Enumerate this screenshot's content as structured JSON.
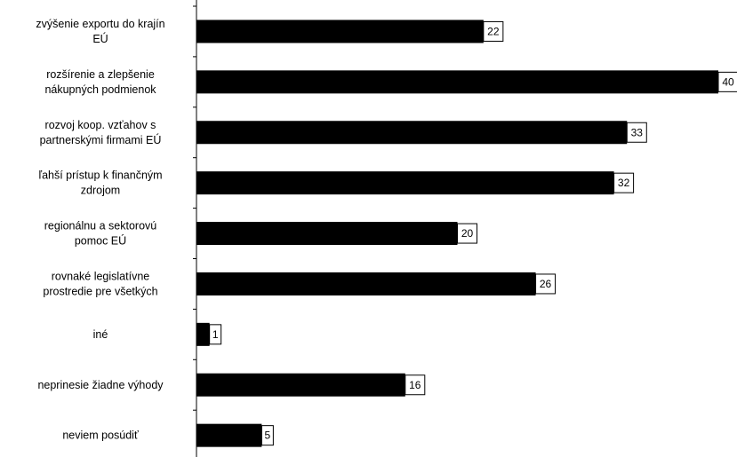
{
  "chart_data": {
    "type": "bar",
    "orientation": "horizontal",
    "categories": [
      [
        "zvýšenie exportu do krajín",
        "EÚ"
      ],
      [
        "rozšírenie a zlepšenie",
        "nákupných podmienok"
      ],
      [
        "rozvoj koop. vzťahov s",
        "partnerskými firmami EÚ"
      ],
      [
        "ľahší prístup k finančným",
        "zdrojom"
      ],
      [
        "regionálnu a sektorovú",
        "pomoc EÚ"
      ],
      [
        "rovnaké legislatívne",
        "prostredie pre všetkých"
      ],
      [
        "iné"
      ],
      [
        "neprinesie žiadne výhody"
      ],
      [
        "neviem posúdiť"
      ]
    ],
    "values": [
      22,
      40,
      33,
      32,
      20,
      26,
      1,
      16,
      5
    ],
    "title": "",
    "xlabel": "",
    "ylabel": "",
    "xlim": [
      0,
      40
    ],
    "grid": false,
    "legend": "none",
    "data_labels": true,
    "colors": {
      "bar": "#000000",
      "axis": "#000000",
      "label_box": "#ffffff"
    }
  }
}
